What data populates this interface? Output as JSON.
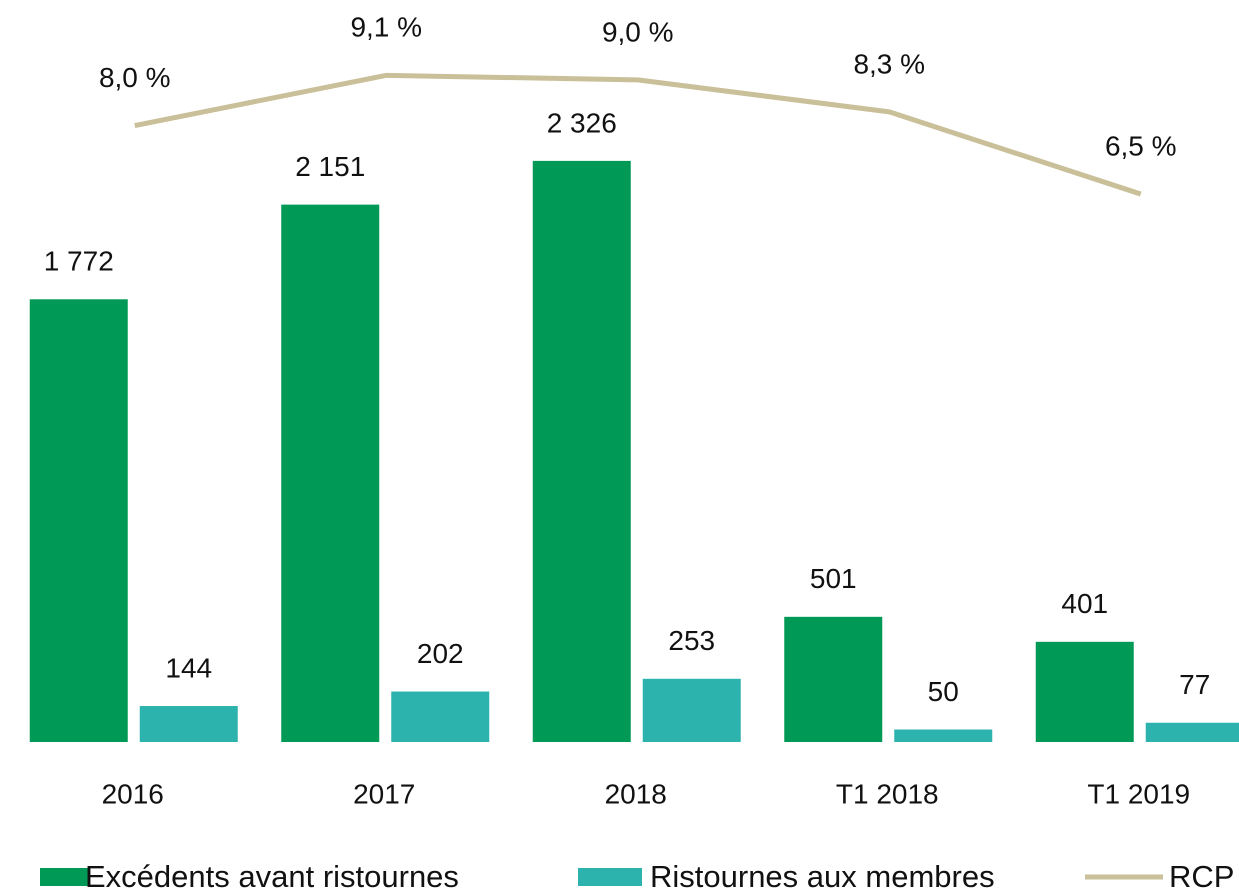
{
  "chart_data": {
    "type": "bar",
    "categories": [
      "2016",
      "2017",
      "2018",
      "T1 2018",
      "T1 2019"
    ],
    "series": [
      {
        "name": "Excédents avant ristournes",
        "color": "#009a56",
        "values": [
          1772,
          2151,
          2326,
          501,
          401
        ],
        "value_labels": [
          "1 772",
          "2 151",
          "2 326",
          "501",
          "401"
        ]
      },
      {
        "name": "Ristournes aux membres",
        "color": "#2db3ad",
        "values": [
          144,
          202,
          253,
          50,
          77
        ]
      },
      {
        "name": "RCP",
        "type": "line",
        "axis": "y2",
        "color": "#c9bf98",
        "values": [
          8.0,
          9.1,
          9.0,
          8.3,
          6.5
        ],
        "value_labels": [
          "8,0 %",
          "9,1 %",
          "9,0 %",
          "8,3 %",
          "6,5 %"
        ]
      }
    ],
    "ylim": [
      0,
      2970
    ],
    "y2lim": [
      -5.5,
      10.75
    ]
  }
}
